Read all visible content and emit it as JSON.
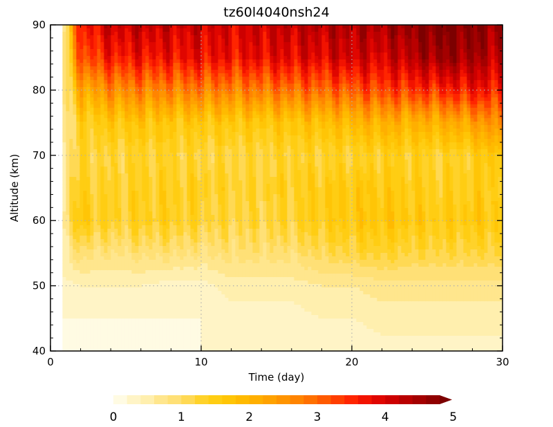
{
  "chart_data": {
    "type": "heatmap",
    "title": "tz60l4040nsh24",
    "xlabel": "Time (day)",
    "ylabel": "Altitude (km)",
    "xlim": [
      0,
      30
    ],
    "ylim": [
      40,
      90
    ],
    "x_ticks": [
      0,
      10,
      20,
      30
    ],
    "y_ticks": [
      40,
      50,
      60,
      70,
      80,
      90
    ],
    "grid": true,
    "data_start_day": 0.8,
    "x": [
      0.8,
      2,
      4,
      6,
      8,
      10,
      12,
      14,
      16,
      18,
      20,
      22,
      24,
      26,
      28,
      30
    ],
    "y": [
      40,
      45,
      50,
      55,
      60,
      65,
      70,
      75,
      80,
      85,
      90
    ],
    "z": [
      [
        0.1,
        0.1,
        0.1,
        0.1,
        0.1,
        0.2,
        0.2,
        0.2,
        0.2,
        0.2,
        0.2,
        0.3,
        0.3,
        0.3,
        0.3,
        0.3
      ],
      [
        0.2,
        0.2,
        0.2,
        0.2,
        0.2,
        0.2,
        0.3,
        0.3,
        0.3,
        0.4,
        0.4,
        0.5,
        0.5,
        0.5,
        0.5,
        0.5
      ],
      [
        0.3,
        0.4,
        0.4,
        0.4,
        0.3,
        0.3,
        0.5,
        0.5,
        0.5,
        0.6,
        0.6,
        0.7,
        0.7,
        0.7,
        0.7,
        0.7
      ],
      [
        0.6,
        0.9,
        0.8,
        0.9,
        0.9,
        0.8,
        0.9,
        0.9,
        0.9,
        1.1,
        1.2,
        1.3,
        1.2,
        1.2,
        1.2,
        1.2
      ],
      [
        0.8,
        1.6,
        1.3,
        1.4,
        1.4,
        1.3,
        1.2,
        1.2,
        1.3,
        1.5,
        1.6,
        1.7,
        1.6,
        1.5,
        1.6,
        1.6
      ],
      [
        0.8,
        1.4,
        1.3,
        1.4,
        1.4,
        1.4,
        1.3,
        1.3,
        1.4,
        1.5,
        1.6,
        1.6,
        1.5,
        1.4,
        1.5,
        1.5
      ],
      [
        0.7,
        1.3,
        1.2,
        1.3,
        1.3,
        1.2,
        1.2,
        1.2,
        1.3,
        1.3,
        1.3,
        1.4,
        1.4,
        1.3,
        1.4,
        1.8
      ],
      [
        0.6,
        1.4,
        1.6,
        1.7,
        1.6,
        1.6,
        1.6,
        1.6,
        1.7,
        1.8,
        1.9,
        2.1,
        2.0,
        2.1,
        2.3,
        2.7
      ],
      [
        0.6,
        2.1,
        2.6,
        2.7,
        2.7,
        2.8,
        2.7,
        2.8,
        2.9,
        3.0,
        3.1,
        3.3,
        3.4,
        3.5,
        3.7,
        3.6
      ],
      [
        0.6,
        3.2,
        3.6,
        3.7,
        3.7,
        3.8,
        3.7,
        3.8,
        3.9,
        3.9,
        4.1,
        4.0,
        4.3,
        4.6,
        4.5,
        4.2
      ],
      [
        0.6,
        3.6,
        4.1,
        4.2,
        4.1,
        4.1,
        4.0,
        4.1,
        4.2,
        4.3,
        4.4,
        4.4,
        4.7,
        4.9,
        4.8,
        4.5
      ]
    ],
    "colorbar": {
      "min": 0,
      "max": 5,
      "step": 0.2,
      "labels": [
        "0",
        "1",
        "2",
        "3",
        "4",
        "5"
      ],
      "extend": "max",
      "colors": [
        "#fffbe3",
        "#fff4c6",
        "#ffefae",
        "#ffe68d",
        "#ffe076",
        "#ffd954",
        "#ffd22a",
        "#ffcd13",
        "#ffc506",
        "#ffba00",
        "#ffaf00",
        "#ffa200",
        "#ff9400",
        "#ff8400",
        "#ff7000",
        "#ff5a00",
        "#ff3e00",
        "#ff2500",
        "#f21300",
        "#e00600",
        "#cd0000",
        "#b90000",
        "#a40000",
        "#900000",
        "#7c0000"
      ]
    }
  }
}
